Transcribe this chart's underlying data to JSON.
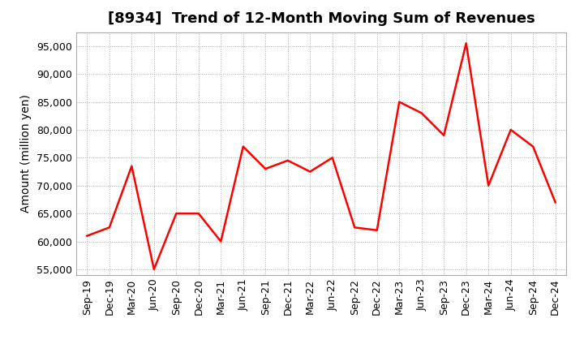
{
  "title": "[8934]  Trend of 12-Month Moving Sum of Revenues",
  "ylabel": "Amount (million yen)",
  "x_labels": [
    "Sep-19",
    "Dec-19",
    "Mar-20",
    "Jun-20",
    "Sep-20",
    "Dec-20",
    "Mar-21",
    "Jun-21",
    "Sep-21",
    "Dec-21",
    "Mar-22",
    "Jun-22",
    "Sep-22",
    "Dec-22",
    "Mar-23",
    "Jun-23",
    "Sep-23",
    "Dec-23",
    "Mar-24",
    "Jun-24",
    "Sep-24",
    "Dec-24"
  ],
  "y_values": [
    61000,
    62500,
    73500,
    55000,
    65000,
    65000,
    60000,
    77000,
    73000,
    74500,
    72500,
    75000,
    62500,
    62000,
    85000,
    83000,
    79000,
    95500,
    70000,
    80000,
    77000,
    67000
  ],
  "line_color": "#FF0000",
  "line_width": 1.8,
  "ylim": [
    54000,
    97500
  ],
  "yticks": [
    55000,
    60000,
    65000,
    70000,
    75000,
    80000,
    85000,
    90000,
    95000
  ],
  "background_color": "#FFFFFF",
  "plot_bg_color": "#FFFFFF",
  "grid_color": "#AAAAAA",
  "title_fontsize": 13,
  "axis_label_fontsize": 10,
  "tick_fontsize": 9
}
